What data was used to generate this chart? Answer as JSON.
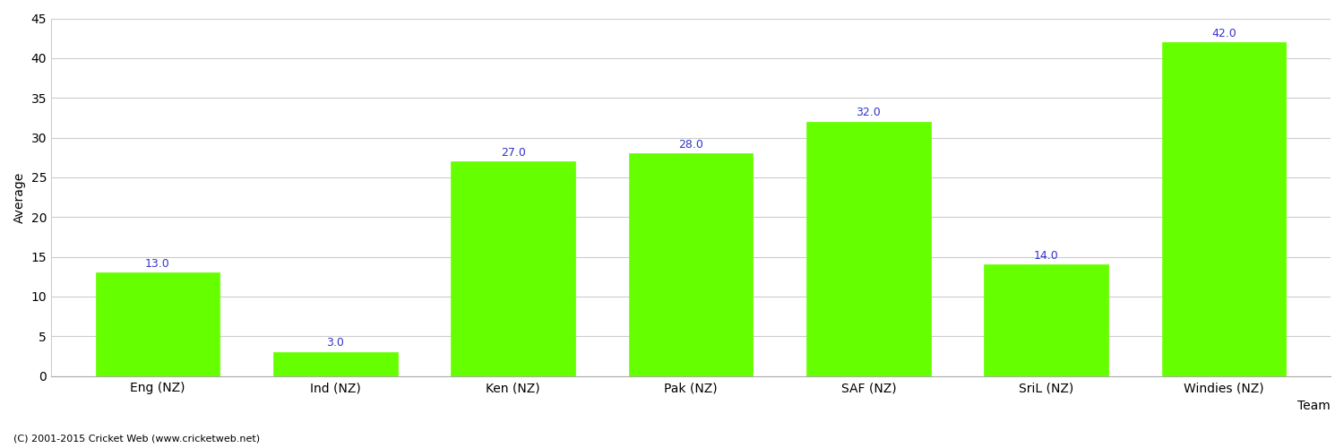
{
  "categories": [
    "Eng (NZ)",
    "Ind (NZ)",
    "Ken (NZ)",
    "Pak (NZ)",
    "SAF (NZ)",
    "SriL (NZ)",
    "Windies (NZ)"
  ],
  "values": [
    13.0,
    3.0,
    27.0,
    28.0,
    32.0,
    14.0,
    42.0
  ],
  "bar_color": "#66ff00",
  "bar_edge_color": "#66ff00",
  "value_color": "#3333cc",
  "xlabel": "Team",
  "ylabel": "Average",
  "ylim": [
    0,
    45
  ],
  "yticks": [
    0,
    5,
    10,
    15,
    20,
    25,
    30,
    35,
    40,
    45
  ],
  "grid_color": "#cccccc",
  "background_color": "#ffffff",
  "footer_text": "(C) 2001-2015 Cricket Web (www.cricketweb.net)",
  "value_fontsize": 9,
  "label_fontsize": 10,
  "axis_fontsize": 10,
  "footer_fontsize": 8,
  "bar_width": 0.7
}
